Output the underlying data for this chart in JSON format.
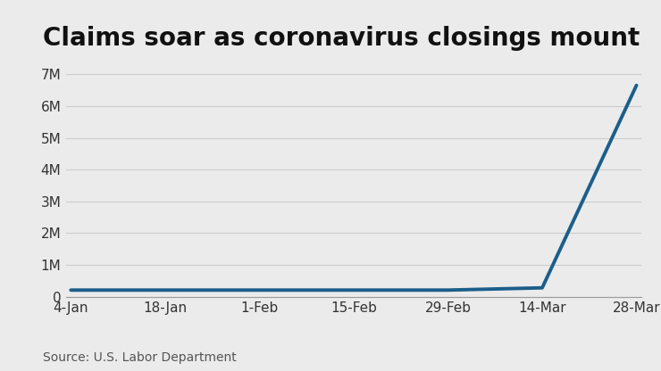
{
  "title": "Claims soar as coronavirus closings mount",
  "source_text": "Source: U.S. Labor Department",
  "x_labels": [
    "4-Jan",
    "18-Jan",
    "1-Feb",
    "15-Feb",
    "29-Feb",
    "14-Mar",
    "28-Mar"
  ],
  "x_values": [
    0,
    1,
    2,
    3,
    4,
    5,
    6
  ],
  "y_values": [
    211000,
    211000,
    211000,
    211000,
    211000,
    282000,
    6648000
  ],
  "line_color": "#1b5e8a",
  "line_width": 2.8,
  "ylim": [
    0,
    7000000
  ],
  "yticks": [
    0,
    1000000,
    2000000,
    3000000,
    4000000,
    5000000,
    6000000,
    7000000
  ],
  "ytick_labels": [
    "0",
    "1M",
    "2M",
    "3M",
    "4M",
    "5M",
    "6M",
    "7M"
  ],
  "background_color": "#ebebeb",
  "plot_bg_color": "#ebebeb",
  "grid_color": "#cccccc",
  "title_fontsize": 20,
  "axis_fontsize": 11,
  "source_fontsize": 10
}
